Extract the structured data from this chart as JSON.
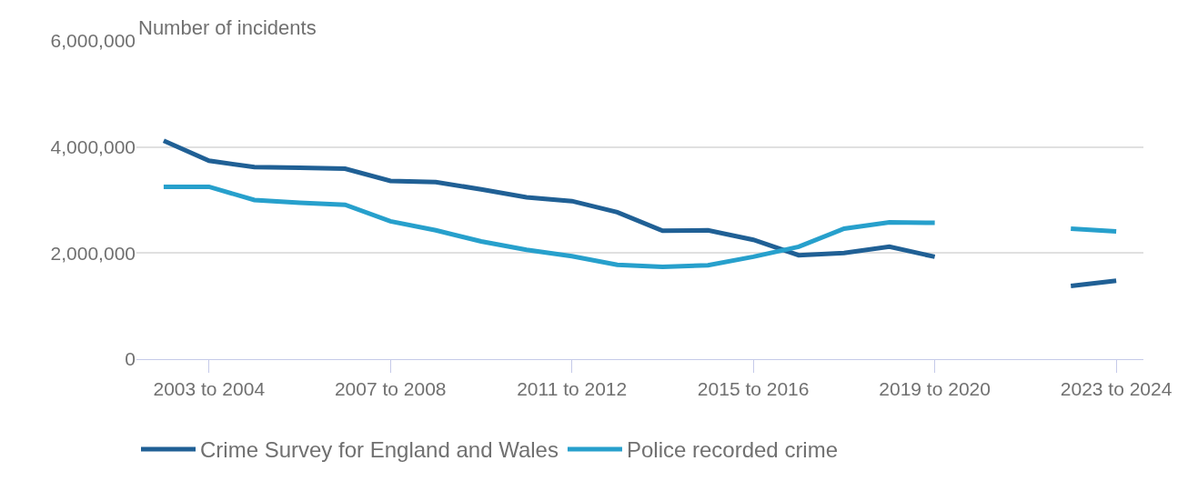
{
  "chart_data": {
    "type": "line",
    "ylabel": "Number of incidents",
    "categories": [
      null,
      "2003 to 2004",
      null,
      null,
      null,
      "2007 to 2008",
      null,
      null,
      null,
      "2011 to 2012",
      null,
      null,
      null,
      "2015 to 2016",
      null,
      null,
      null,
      "2019 to 2020",
      null,
      null,
      null,
      "2023 to 2024"
    ],
    "series": [
      {
        "name": "Crime Survey for England and Wales",
        "color": "#206095",
        "values": [
          4120000,
          3740000,
          3620000,
          3610000,
          3590000,
          3360000,
          3340000,
          3200000,
          3050000,
          2980000,
          2770000,
          2420000,
          2430000,
          2250000,
          1960000,
          2000000,
          2120000,
          1930000,
          null,
          null,
          1380000,
          1480000
        ]
      },
      {
        "name": "Police recorded crime",
        "color": "#27a0cc",
        "values": [
          3250000,
          3250000,
          3000000,
          2950000,
          2910000,
          2600000,
          2430000,
          2220000,
          2060000,
          1940000,
          1780000,
          1740000,
          1770000,
          1930000,
          2120000,
          2460000,
          2580000,
          2570000,
          null,
          null,
          2460000,
          2410000
        ]
      }
    ],
    "ylim": [
      0,
      6000000
    ],
    "yticks": [
      {
        "value": 0,
        "label": "0"
      },
      {
        "value": 2000000,
        "label": "2,000,000"
      },
      {
        "value": 4000000,
        "label": "4,000,000"
      },
      {
        "value": 6000000,
        "label": "6,000,000"
      }
    ],
    "grid": "y",
    "legend": "bottom",
    "marker": "none",
    "line_style": "solid"
  }
}
